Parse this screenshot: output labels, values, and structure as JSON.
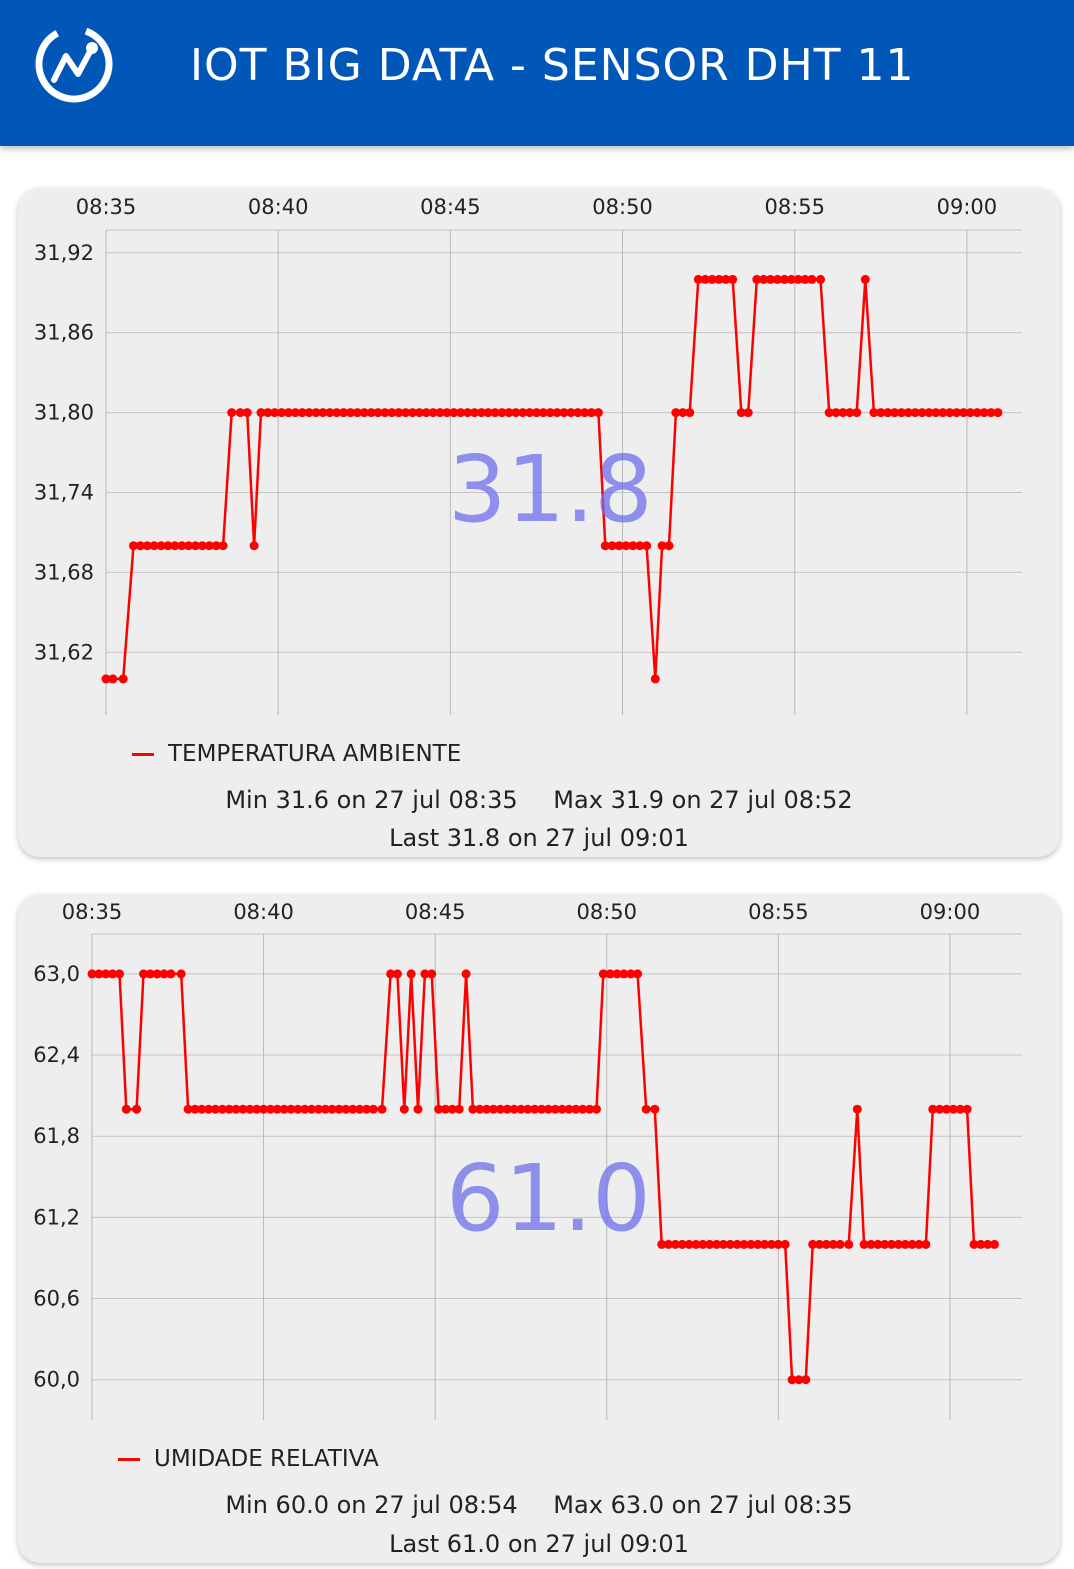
{
  "header": {
    "title": "IOT BIG DATA - SENSOR DHT 11",
    "bg_color": "#0057b7",
    "logo_icon": "chart-line-circle-icon"
  },
  "charts": [
    {
      "legend": "TEMPERATURA AMBIENTE",
      "min_label": "Min",
      "min_text": "31.6 on 27 jul 08:35",
      "max_label": "Max",
      "max_text": "31.9 on 27 jul 08:52",
      "last_label": "Last",
      "last_text": "31.8 on 27 jul 09:01",
      "current": "31.8"
    },
    {
      "legend": "UMIDADE RELATIVA",
      "min_label": "Min",
      "min_text": "60.0 on 27 jul 08:54",
      "max_label": "Max",
      "max_text": "63.0 on 27 jul 08:35",
      "last_label": "Last",
      "last_text": "61.0 on 27 jul 09:01",
      "current": "61.0"
    }
  ],
  "chart_data": [
    {
      "type": "line",
      "color": "#ff0000",
      "x_ticks": [
        "08:35",
        "08:40",
        "08:45",
        "08:50",
        "08:55",
        "09:00"
      ],
      "x_tick_minutes": [
        0,
        5,
        10,
        15,
        20,
        25
      ],
      "xlim_minutes": [
        0,
        26.6
      ],
      "y_ticks": [
        31.92,
        31.86,
        31.8,
        31.74,
        31.68,
        31.62
      ],
      "y_tick_labels": [
        "31,92",
        "31,86",
        "31,80",
        "31,74",
        "31,68",
        "31,62"
      ],
      "ylim": [
        31.5729,
        31.9281
      ],
      "grid": true,
      "series": [
        {
          "name": "TEMPERATURA AMBIENTE",
          "x_minutes": [
            0,
            0.2,
            0.5,
            0.8,
            1.0,
            1.2,
            1.4,
            1.6,
            1.8,
            2.0,
            2.2,
            2.4,
            2.6,
            2.8,
            3.0,
            3.2,
            3.4,
            3.65,
            3.9,
            4.1,
            4.3,
            4.5,
            4.7,
            4.9,
            5.1,
            5.3,
            5.5,
            5.7,
            5.9,
            6.1,
            6.3,
            6.5,
            6.7,
            6.9,
            7.1,
            7.3,
            7.5,
            7.7,
            7.9,
            8.1,
            8.3,
            8.5,
            8.7,
            8.9,
            9.1,
            9.3,
            9.5,
            9.7,
            9.9,
            10.1,
            10.3,
            10.5,
            10.7,
            10.9,
            11.1,
            11.3,
            11.5,
            11.7,
            11.9,
            12.1,
            12.3,
            12.5,
            12.7,
            12.9,
            13.1,
            13.3,
            13.5,
            13.7,
            13.9,
            14.1,
            14.3,
            14.5,
            14.7,
            14.9,
            15.1,
            15.3,
            15.5,
            15.7,
            15.95,
            16.15,
            16.35,
            16.55,
            16.75,
            16.95,
            17.2,
            17.4,
            17.6,
            17.8,
            18.0,
            18.2,
            18.45,
            18.65,
            18.9,
            19.1,
            19.3,
            19.5,
            19.7,
            19.9,
            20.1,
            20.3,
            20.5,
            20.75,
            21.0,
            21.2,
            21.4,
            21.6,
            21.8,
            22.05,
            22.3,
            22.5,
            22.7,
            22.9,
            23.1,
            23.3,
            23.5,
            23.7,
            23.9,
            24.1,
            24.3,
            24.5,
            24.7,
            24.9,
            25.1,
            25.3,
            25.5,
            25.7,
            25.9
          ],
          "values": [
            31.6,
            31.6,
            31.6,
            31.7,
            31.7,
            31.7,
            31.7,
            31.7,
            31.7,
            31.7,
            31.7,
            31.7,
            31.7,
            31.7,
            31.7,
            31.7,
            31.7,
            31.8,
            31.8,
            31.8,
            31.7,
            31.8,
            31.8,
            31.8,
            31.8,
            31.8,
            31.8,
            31.8,
            31.8,
            31.8,
            31.8,
            31.8,
            31.8,
            31.8,
            31.8,
            31.8,
            31.8,
            31.8,
            31.8,
            31.8,
            31.8,
            31.8,
            31.8,
            31.8,
            31.8,
            31.8,
            31.8,
            31.8,
            31.8,
            31.8,
            31.8,
            31.8,
            31.8,
            31.8,
            31.8,
            31.8,
            31.8,
            31.8,
            31.8,
            31.8,
            31.8,
            31.8,
            31.8,
            31.8,
            31.8,
            31.8,
            31.8,
            31.8,
            31.8,
            31.8,
            31.8,
            31.7,
            31.7,
            31.7,
            31.7,
            31.7,
            31.7,
            31.7,
            31.6,
            31.7,
            31.7,
            31.8,
            31.8,
            31.8,
            31.9,
            31.9,
            31.9,
            31.9,
            31.9,
            31.9,
            31.8,
            31.8,
            31.9,
            31.9,
            31.9,
            31.9,
            31.9,
            31.9,
            31.9,
            31.9,
            31.9,
            31.9,
            31.8,
            31.8,
            31.8,
            31.8,
            31.8,
            31.9,
            31.8,
            31.8,
            31.8,
            31.8,
            31.8,
            31.8,
            31.8,
            31.8,
            31.8,
            31.8,
            31.8,
            31.8,
            31.8,
            31.8,
            31.8,
            31.8,
            31.8,
            31.8,
            31.8
          ]
        }
      ]
    },
    {
      "type": "line",
      "color": "#ff0000",
      "x_ticks": [
        "08:35",
        "08:40",
        "08:45",
        "08:50",
        "08:55",
        "09:00"
      ],
      "x_tick_minutes": [
        0,
        5,
        10,
        15,
        20,
        25
      ],
      "xlim_minutes": [
        0,
        27.1
      ],
      "y_ticks": [
        63.0,
        62.4,
        61.8,
        61.2,
        60.6,
        60.0
      ],
      "y_tick_labels": [
        "63,0",
        "62,4",
        "61,8",
        "61,2",
        "60,6",
        "60,0"
      ],
      "ylim": [
        59.702,
        63.295
      ],
      "grid": true,
      "series": [
        {
          "name": "UMIDADE RELATIVA",
          "x_minutes": [
            0,
            0.2,
            0.4,
            0.6,
            0.8,
            1.0,
            1.3,
            1.5,
            1.7,
            1.9,
            2.1,
            2.3,
            2.6,
            2.8,
            3.0,
            3.2,
            3.4,
            3.6,
            3.8,
            4.0,
            4.2,
            4.4,
            4.6,
            4.8,
            5.0,
            5.2,
            5.4,
            5.6,
            5.8,
            6.0,
            6.2,
            6.4,
            6.6,
            6.8,
            7.0,
            7.2,
            7.4,
            7.6,
            7.8,
            8.0,
            8.2,
            8.45,
            8.7,
            8.9,
            9.1,
            9.3,
            9.5,
            9.7,
            9.9,
            10.1,
            10.3,
            10.5,
            10.7,
            10.9,
            11.1,
            11.3,
            11.5,
            11.7,
            11.9,
            12.1,
            12.3,
            12.5,
            12.7,
            12.9,
            13.1,
            13.3,
            13.5,
            13.7,
            13.9,
            14.1,
            14.3,
            14.5,
            14.7,
            14.9,
            15.1,
            15.3,
            15.5,
            15.7,
            15.9,
            16.15,
            16.4,
            16.6,
            16.8,
            17.0,
            17.2,
            17.4,
            17.6,
            17.8,
            18.0,
            18.2,
            18.4,
            18.6,
            18.8,
            19.0,
            19.2,
            19.4,
            19.6,
            19.8,
            20.0,
            20.2,
            20.4,
            20.6,
            20.8,
            21.0,
            21.2,
            21.4,
            21.6,
            21.8,
            22.05,
            22.3,
            22.5,
            22.7,
            22.9,
            23.1,
            23.3,
            23.5,
            23.7,
            23.9,
            24.1,
            24.3,
            24.5,
            24.7,
            24.9,
            25.1,
            25.3,
            25.5,
            25.7,
            25.9,
            26.1,
            26.3
          ],
          "values": [
            63.0,
            63.0,
            63.0,
            63.0,
            63.0,
            62.0,
            62.0,
            63.0,
            63.0,
            63.0,
            63.0,
            63.0,
            63.0,
            62.0,
            62.0,
            62.0,
            62.0,
            62.0,
            62.0,
            62.0,
            62.0,
            62.0,
            62.0,
            62.0,
            62.0,
            62.0,
            62.0,
            62.0,
            62.0,
            62.0,
            62.0,
            62.0,
            62.0,
            62.0,
            62.0,
            62.0,
            62.0,
            62.0,
            62.0,
            62.0,
            62.0,
            62.0,
            63.0,
            63.0,
            62.0,
            63.0,
            62.0,
            63.0,
            63.0,
            62.0,
            62.0,
            62.0,
            62.0,
            63.0,
            62.0,
            62.0,
            62.0,
            62.0,
            62.0,
            62.0,
            62.0,
            62.0,
            62.0,
            62.0,
            62.0,
            62.0,
            62.0,
            62.0,
            62.0,
            62.0,
            62.0,
            62.0,
            62.0,
            63.0,
            63.0,
            63.0,
            63.0,
            63.0,
            63.0,
            62.0,
            62.0,
            61.0,
            61.0,
            61.0,
            61.0,
            61.0,
            61.0,
            61.0,
            61.0,
            61.0,
            61.0,
            61.0,
            61.0,
            61.0,
            61.0,
            61.0,
            61.0,
            61.0,
            61.0,
            61.0,
            60.0,
            60.0,
            60.0,
            61.0,
            61.0,
            61.0,
            61.0,
            61.0,
            61.0,
            62.0,
            61.0,
            61.0,
            61.0,
            61.0,
            61.0,
            61.0,
            61.0,
            61.0,
            61.0,
            61.0,
            62.0,
            62.0,
            62.0,
            62.0,
            62.0,
            62.0,
            61.0,
            61.0,
            61.0,
            61.0
          ]
        }
      ]
    }
  ]
}
